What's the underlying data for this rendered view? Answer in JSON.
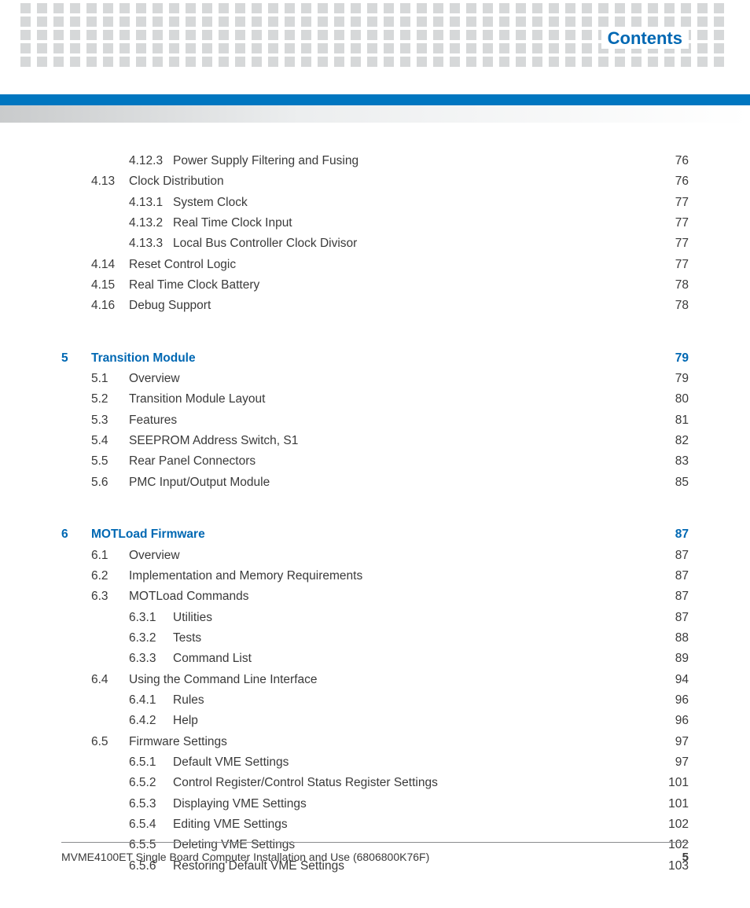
{
  "header": {
    "title": "Contents"
  },
  "decor": {
    "dot_color": "#d6d8d9",
    "blue_bar_color": "#0076c0",
    "accent_color": "#0068b3",
    "text_color": "#3a3a3a"
  },
  "toc": {
    "blocks": [
      {
        "chapter": null,
        "entries": [
          {
            "level": 2,
            "num": "4.12.3",
            "title": "Power Supply Filtering and Fusing",
            "page": "76"
          },
          {
            "level": 1,
            "num": "4.13",
            "title": "Clock Distribution",
            "page": "76"
          },
          {
            "level": 2,
            "num": "4.13.1",
            "title": "System Clock",
            "page": "77"
          },
          {
            "level": 2,
            "num": "4.13.2",
            "title": "Real Time Clock Input",
            "page": "77"
          },
          {
            "level": 2,
            "num": "4.13.3",
            "title": "Local Bus Controller Clock Divisor",
            "page": "77"
          },
          {
            "level": 1,
            "num": "4.14",
            "title": "Reset Control Logic",
            "page": "77"
          },
          {
            "level": 1,
            "num": "4.15",
            "title": "Real Time Clock Battery",
            "page": "78"
          },
          {
            "level": 1,
            "num": "4.16",
            "title": "Debug Support",
            "page": "78"
          }
        ]
      },
      {
        "chapter": {
          "num": "5",
          "title": "Transition Module",
          "page": "79"
        },
        "entries": [
          {
            "level": 1,
            "num": "5.1",
            "title": "Overview",
            "page": "79"
          },
          {
            "level": 1,
            "num": "5.2",
            "title": "Transition Module Layout",
            "page": "80"
          },
          {
            "level": 1,
            "num": "5.3",
            "title": "Features",
            "page": "81"
          },
          {
            "level": 1,
            "num": "5.4",
            "title": "SEEPROM Address Switch, S1",
            "page": "82"
          },
          {
            "level": 1,
            "num": "5.5",
            "title": "Rear Panel Connectors",
            "page": "83"
          },
          {
            "level": 1,
            "num": "5.6",
            "title": "PMC Input/Output Module",
            "page": "85"
          }
        ]
      },
      {
        "chapter": {
          "num": "6",
          "title": "MOTLoad Firmware",
          "page": "87"
        },
        "entries": [
          {
            "level": 1,
            "num": "6.1",
            "title": "Overview",
            "page": "87"
          },
          {
            "level": 1,
            "num": "6.2",
            "title": "Implementation and Memory Requirements",
            "page": "87"
          },
          {
            "level": 1,
            "num": "6.3",
            "title": "MOTLoad Commands",
            "page": "87"
          },
          {
            "level": 2,
            "num": "6.3.1",
            "title": "Utilities",
            "page": "87"
          },
          {
            "level": 2,
            "num": "6.3.2",
            "title": "Tests",
            "page": "88"
          },
          {
            "level": 2,
            "num": "6.3.3",
            "title": "Command List",
            "page": "89"
          },
          {
            "level": 1,
            "num": "6.4",
            "title": "Using the Command Line Interface",
            "page": "94"
          },
          {
            "level": 2,
            "num": "6.4.1",
            "title": "Rules",
            "page": "96"
          },
          {
            "level": 2,
            "num": "6.4.2",
            "title": "Help",
            "page": "96"
          },
          {
            "level": 1,
            "num": "6.5",
            "title": "Firmware Settings",
            "page": "97"
          },
          {
            "level": 2,
            "num": "6.5.1",
            "title": "Default VME Settings",
            "page": "97"
          },
          {
            "level": 2,
            "num": "6.5.2",
            "title": "Control Register/Control Status Register Settings",
            "page": "101"
          },
          {
            "level": 2,
            "num": "6.5.3",
            "title": "Displaying VME Settings",
            "page": "101"
          },
          {
            "level": 2,
            "num": "6.5.4",
            "title": "Editing VME Settings",
            "page": "102"
          },
          {
            "level": 2,
            "num": "6.5.5",
            "title": "Deleting VME Settings",
            "page": "102"
          },
          {
            "level": 2,
            "num": "6.5.6",
            "title": "Restoring Default VME Settings",
            "page": "103"
          }
        ]
      }
    ]
  },
  "footer": {
    "text": "MVME4100ET Single Board Computer Installation and Use (6806800K76F)",
    "page_number": "5"
  }
}
